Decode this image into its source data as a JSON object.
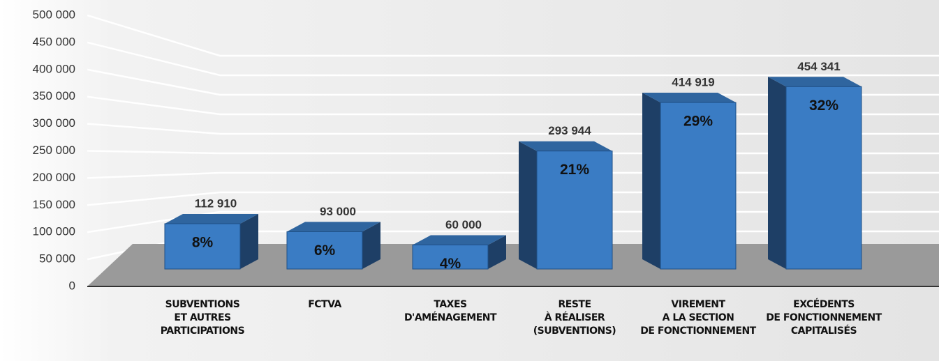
{
  "chart_data": {
    "type": "bar3d",
    "categories": [
      [
        "SUBVENTIONS",
        "ET AUTRES",
        "PARTICIPATIONS"
      ],
      [
        "FCTVA"
      ],
      [
        "TAXES",
        "D'AMÉNAGEMENT"
      ],
      [
        "RESTE",
        "À RÉALISER",
        "(SUBVENTIONS)"
      ],
      [
        "VIREMENT",
        "A LA SECTION",
        "DE FONCTIONNEMENT"
      ],
      [
        "EXCÉDENTS",
        "DE FONCTIONNEMENT",
        "CAPITALISÉS"
      ]
    ],
    "values": [
      112910,
      93000,
      60000,
      293944,
      414919,
      454341
    ],
    "value_labels": [
      "112 910",
      "93 000",
      "60 000",
      "293 944",
      "414 919",
      "454 341"
    ],
    "share_labels": [
      "8%",
      "6%",
      "4%",
      "21%",
      "29%",
      "32%"
    ],
    "color": "#3a7cc4",
    "ylim": [
      0,
      500000
    ],
    "yticks": [
      0,
      {
        "value": 50000,
        "label": "50 000"
      },
      {
        "value": 100000,
        "label": "100 000"
      },
      {
        "value": 150000,
        "label": "150 000"
      },
      {
        "value": 200000,
        "label": "200 000"
      },
      {
        "value": 250000,
        "label": "250 000"
      },
      {
        "value": 300000,
        "label": "300 000"
      },
      {
        "value": 350000,
        "label": "350 000"
      },
      {
        "value": 400000,
        "label": "400 000"
      },
      {
        "value": 450000,
        "label": "450 000"
      },
      {
        "value": 500000,
        "label": "500 000"
      }
    ],
    "grid": true
  }
}
